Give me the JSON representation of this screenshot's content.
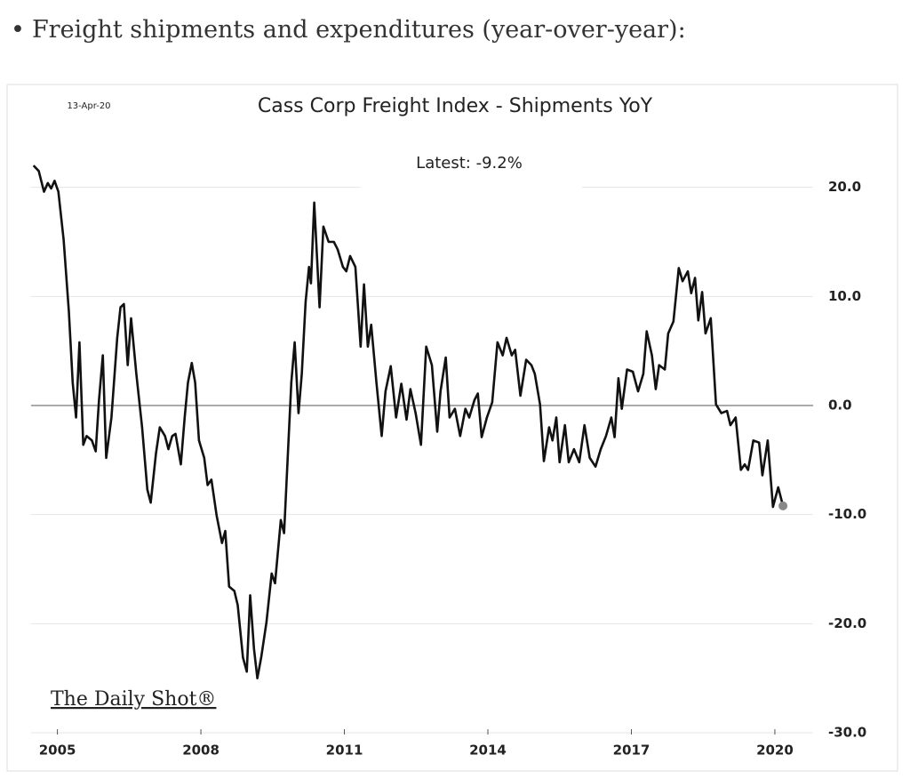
{
  "page": {
    "bullet": "Freight shipments and expenditures (year-over-year):"
  },
  "chart_data": {
    "type": "line",
    "title": "Cass Corp Freight Index - Shipments YoY",
    "date_label": "13-Apr-20",
    "annotation": "Latest:  -9.2%",
    "watermark": "The Daily Shot®",
    "x": [
      2004.5,
      2004.61,
      2004.72,
      2004.8,
      2004.87,
      2004.94,
      2005.02,
      2005.13,
      2005.24,
      2005.32,
      2005.39,
      2005.46,
      2005.54,
      2005.61,
      2005.72,
      2005.8,
      2005.87,
      2005.95,
      2006.02,
      2006.13,
      2006.25,
      2006.32,
      2006.39,
      2006.47,
      2006.54,
      2006.65,
      2006.77,
      2006.88,
      2006.95,
      2007.06,
      2007.14,
      2007.25,
      2007.32,
      2007.4,
      2007.47,
      2007.58,
      2007.66,
      2007.73,
      2007.81,
      2007.88,
      2007.96,
      2008.07,
      2008.14,
      2008.22,
      2008.33,
      2008.44,
      2008.51,
      2008.59,
      2008.7,
      2008.77,
      2008.88,
      2008.96,
      2009.03,
      2009.11,
      2009.18,
      2009.26,
      2009.37,
      2009.48,
      2009.55,
      2009.67,
      2009.74,
      2009.81,
      2009.89,
      2009.96,
      2010.04,
      2010.11,
      2010.19,
      2010.26,
      2010.3,
      2010.37,
      2010.48,
      2010.56,
      2010.67,
      2010.78,
      2010.86,
      2010.97,
      2011.04,
      2011.12,
      2011.23,
      2011.34,
      2011.41,
      2011.49,
      2011.56,
      2011.67,
      2011.78,
      2011.86,
      2011.97,
      2012.08,
      2012.19,
      2012.3,
      2012.38,
      2012.49,
      2012.6,
      2012.71,
      2012.83,
      2012.94,
      2013.01,
      2013.12,
      2013.2,
      2013.31,
      2013.42,
      2013.53,
      2013.61,
      2013.72,
      2013.79,
      2013.87,
      2013.98,
      2014.09,
      2014.2,
      2014.31,
      2014.39,
      2014.5,
      2014.57,
      2014.68,
      2014.8,
      2014.91,
      2014.98,
      2015.09,
      2015.17,
      2015.28,
      2015.35,
      2015.43,
      2015.5,
      2015.61,
      2015.69,
      2015.8,
      2015.91,
      2016.02,
      2016.13,
      2016.25,
      2016.36,
      2016.47,
      2016.58,
      2016.65,
      2016.73,
      2016.8,
      2016.91,
      2017.03,
      2017.14,
      2017.25,
      2017.32,
      2017.43,
      2017.51,
      2017.58,
      2017.7,
      2017.77,
      2017.88,
      2017.99,
      2018.07,
      2018.18,
      2018.25,
      2018.33,
      2018.4,
      2018.48,
      2018.55,
      2018.66,
      2018.77,
      2018.88,
      2019.0,
      2019.07,
      2019.18,
      2019.29,
      2019.37,
      2019.44,
      2019.55,
      2019.67,
      2019.74,
      2019.85,
      2019.96,
      2020.07,
      2020.17
    ],
    "series": [
      {
        "color": "#111111",
        "values": [
          22.0,
          21.5,
          19.6,
          20.4,
          19.9,
          20.6,
          19.6,
          15.2,
          8.6,
          2.1,
          -1.1,
          5.8,
          -3.6,
          -2.8,
          -3.2,
          -4.2,
          0.5,
          4.6,
          -4.8,
          -1.1,
          6.2,
          9.0,
          9.3,
          3.7,
          8.0,
          2.9,
          -2.0,
          -7.7,
          -8.9,
          -4.4,
          -2.0,
          -2.8,
          -4.0,
          -2.8,
          -2.6,
          -5.4,
          -1.1,
          2.1,
          3.9,
          2.1,
          -3.2,
          -4.8,
          -7.3,
          -6.8,
          -10.1,
          -12.6,
          -11.5,
          -16.6,
          -17.0,
          -18.3,
          -23.1,
          -24.4,
          -17.4,
          -22.3,
          -25.0,
          -23.1,
          -19.9,
          -15.4,
          -16.3,
          -10.5,
          -11.7,
          -5.2,
          2.1,
          5.8,
          -0.7,
          2.9,
          9.5,
          12.7,
          11.2,
          18.6,
          9.0,
          16.4,
          15.0,
          15.0,
          14.3,
          12.7,
          12.3,
          13.7,
          12.7,
          5.4,
          11.1,
          5.4,
          7.4,
          2.1,
          -2.8,
          1.3,
          3.6,
          -1.1,
          2.0,
          -1.3,
          1.5,
          -0.7,
          -3.6,
          5.4,
          3.7,
          -2.4,
          1.3,
          4.4,
          -1.1,
          -0.3,
          -2.8,
          -0.3,
          -1.1,
          0.5,
          1.1,
          -2.9,
          -1.1,
          0.3,
          5.8,
          4.6,
          6.2,
          4.6,
          5.1,
          0.9,
          4.2,
          3.7,
          2.9,
          0.1,
          -5.1,
          -2.0,
          -3.2,
          -1.1,
          -5.2,
          -1.8,
          -5.2,
          -4.0,
          -5.2,
          -1.8,
          -4.8,
          -5.6,
          -4.0,
          -2.8,
          -1.1,
          -2.9,
          2.5,
          -0.3,
          3.3,
          3.1,
          1.3,
          2.9,
          6.8,
          4.6,
          1.5,
          3.7,
          3.3,
          6.6,
          7.7,
          12.6,
          11.4,
          12.3,
          10.3,
          11.7,
          7.8,
          10.4,
          6.6,
          8.0,
          0.1,
          -0.7,
          -0.5,
          -1.8,
          -1.1,
          -5.9,
          -5.4,
          -5.9,
          -3.2,
          -3.4,
          -6.4,
          -3.2,
          -9.3,
          -7.5,
          -9.2
        ]
      }
    ],
    "last_point_color": "#888888",
    "xlim": [
      2004.45,
      2020.8
    ],
    "xticks": [
      2005,
      2008,
      2011,
      2014,
      2017,
      2020
    ],
    "ylim": [
      -30,
      22.5
    ],
    "yticks": [
      {
        "value": -30,
        "label": "-30.0"
      },
      {
        "value": -20,
        "label": "-20.0"
      },
      {
        "value": -10,
        "label": "-10.0"
      },
      {
        "value": 0,
        "label": "0.0"
      },
      {
        "value": 10,
        "label": "10.0"
      },
      {
        "value": 20,
        "label": "20.0"
      }
    ],
    "grid": true
  }
}
